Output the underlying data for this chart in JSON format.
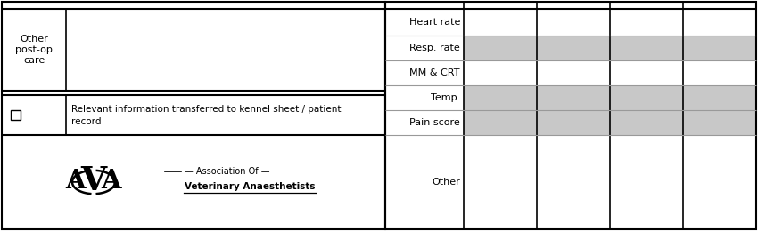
{
  "postop_label": "Other\npost-op\ncare",
  "relevant_text_line1": "Relevant information transferred to kennel sheet / patient",
  "relevant_text_line2": "record",
  "right_rows": [
    "Heart rate",
    "Resp. rate",
    "MM & CRT",
    "Temp.",
    "Pain score",
    "Other"
  ],
  "border_color": "#000000",
  "gray_row_color": "#c8c8c8",
  "bg_color": "#ffffff",
  "text_color": "#000000",
  "font_size": 8,
  "assoc_line1": "Association Of",
  "assoc_line2": "Veterinary Anaesthetists"
}
